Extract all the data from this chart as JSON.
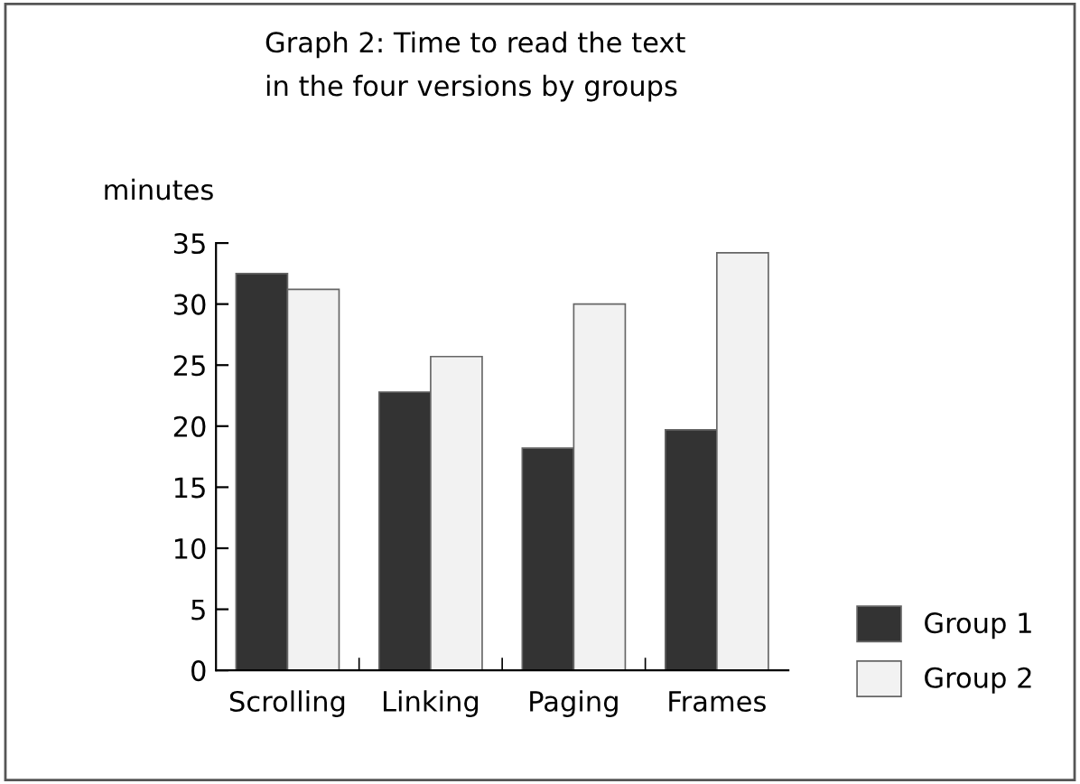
{
  "chart_data": {
    "type": "bar",
    "title": "Graph 2: Time to read the text\nin the four versions by groups",
    "ylabel": "minutes",
    "categories": [
      "Scrolling",
      "Linking",
      "Paging",
      "Frames"
    ],
    "series": [
      {
        "name": "Group 1",
        "color": "#333333",
        "values": [
          32.5,
          22.8,
          18.2,
          19.7
        ]
      },
      {
        "name": "Group 2",
        "color": "#f2f2f2",
        "values": [
          31.2,
          25.7,
          30.0,
          34.2
        ]
      }
    ],
    "ylim": [
      0,
      35
    ],
    "yticks": [
      0,
      5,
      10,
      15,
      20,
      25,
      30,
      35
    ],
    "grid": false,
    "legend": "bottom right"
  }
}
